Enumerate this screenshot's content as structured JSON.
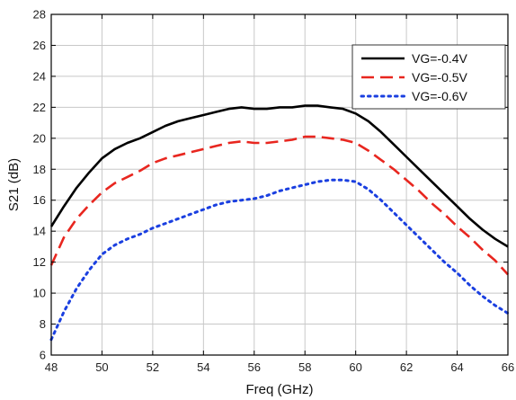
{
  "chart_data": {
    "type": "line",
    "title": "",
    "xlabel": "Freq (GHz)",
    "ylabel": "S21 (dB)",
    "xlim": [
      48,
      66
    ],
    "ylim": [
      6,
      28
    ],
    "xticks": [
      48,
      50,
      52,
      54,
      56,
      58,
      60,
      62,
      64,
      66
    ],
    "yticks": [
      6,
      8,
      10,
      12,
      14,
      16,
      18,
      20,
      22,
      24,
      26,
      28
    ],
    "grid": true,
    "legend_position": "top-right",
    "x": [
      48,
      48.5,
      49,
      49.5,
      50,
      50.5,
      51,
      51.5,
      52,
      52.5,
      53,
      53.5,
      54,
      54.5,
      55,
      55.5,
      56,
      56.5,
      57,
      57.5,
      58,
      58.5,
      59,
      59.5,
      60,
      60.5,
      61,
      61.5,
      62,
      62.5,
      63,
      63.5,
      64,
      64.5,
      65,
      65.5,
      66
    ],
    "series": [
      {
        "name": "VG=-0.4V",
        "color": "#000000",
        "dash": "solid",
        "values": [
          14.3,
          15.6,
          16.8,
          17.8,
          18.7,
          19.3,
          19.7,
          20.0,
          20.4,
          20.8,
          21.1,
          21.3,
          21.5,
          21.7,
          21.9,
          22.0,
          21.9,
          21.9,
          22.0,
          22.0,
          22.1,
          22.1,
          22.0,
          21.9,
          21.6,
          21.1,
          20.4,
          19.6,
          18.8,
          18.0,
          17.2,
          16.4,
          15.6,
          14.8,
          14.1,
          13.5,
          13.0
        ]
      },
      {
        "name": "VG=-0.5V",
        "color": "#e8261f",
        "dash": "dashed",
        "values": [
          11.8,
          13.6,
          14.8,
          15.7,
          16.5,
          17.1,
          17.5,
          17.9,
          18.4,
          18.7,
          18.9,
          19.1,
          19.3,
          19.5,
          19.7,
          19.8,
          19.7,
          19.7,
          19.8,
          19.9,
          20.1,
          20.1,
          20.0,
          19.9,
          19.7,
          19.2,
          18.6,
          18.0,
          17.3,
          16.6,
          15.8,
          15.1,
          14.3,
          13.6,
          12.8,
          12.1,
          11.2
        ]
      },
      {
        "name": "VG=-0.6V",
        "color": "#1a3fe0",
        "dash": "dotted",
        "values": [
          7.0,
          8.8,
          10.3,
          11.5,
          12.5,
          13.1,
          13.5,
          13.8,
          14.2,
          14.5,
          14.8,
          15.1,
          15.4,
          15.7,
          15.9,
          16.0,
          16.1,
          16.3,
          16.6,
          16.8,
          17.0,
          17.2,
          17.3,
          17.3,
          17.2,
          16.7,
          16.0,
          15.2,
          14.4,
          13.6,
          12.8,
          12.0,
          11.3,
          10.5,
          9.8,
          9.2,
          8.7
        ]
      }
    ]
  }
}
